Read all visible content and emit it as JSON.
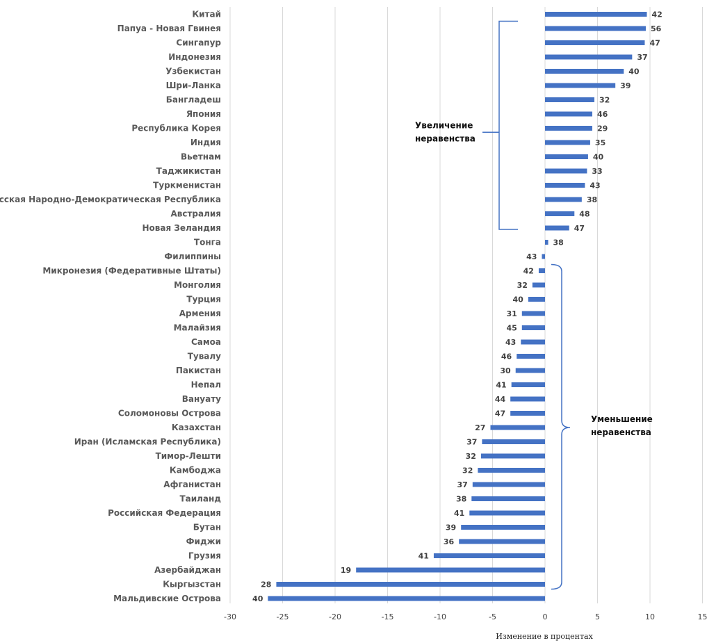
{
  "chart_data": {
    "type": "bar",
    "orientation": "horizontal",
    "categories": [
      "Китай",
      "Папуа - Новая Гвинея",
      "Сингапур",
      "Индонезия",
      "Узбекистан",
      "Шри-Ланка",
      "Бангладеш",
      "Япония",
      "Республика Корея",
      "Индия",
      "Вьетнам",
      "Таджикистан",
      "Туркменистан",
      "Лаосская Народно-Демократическая Республика",
      "Австралия",
      "Новая Зеландия",
      "Тонга",
      "Филиппины",
      "Микронезия (Федеративные Штаты)",
      "Монголия",
      "Турция",
      "Армения",
      "Малайзия",
      "Самоа",
      "Тувалу",
      "Пакистан",
      "Непал",
      "Вануату",
      "Соломоновы Острова",
      "Казахстан",
      "Иран (Исламская Республика)",
      "Тимор-Лешти",
      "Камбоджа",
      "Афганистан",
      "Таиланд",
      "Российская Федерация",
      "Бутан",
      "Фиджи",
      "Грузия",
      "Азербайджан",
      "Кыргызстан",
      "Мальдивские Острова"
    ],
    "values": [
      9.7,
      9.6,
      9.5,
      8.3,
      7.5,
      6.7,
      4.7,
      4.5,
      4.5,
      4.3,
      4.1,
      4.0,
      3.8,
      3.5,
      2.8,
      2.3,
      0.3,
      -0.3,
      -0.6,
      -1.2,
      -1.6,
      -2.2,
      -2.2,
      -2.3,
      -2.7,
      -2.8,
      -3.2,
      -3.3,
      -3.3,
      -5.2,
      -6.0,
      -6.1,
      -6.4,
      -6.9,
      -7.0,
      -7.2,
      -8.0,
      -8.2,
      -10.6,
      -18.0,
      -25.6,
      -26.4
    ],
    "data_labels": [
      "42",
      "56",
      "47",
      "37",
      "40",
      "39",
      "32",
      "46",
      "29",
      "35",
      "40",
      "33",
      "43",
      "38",
      "48",
      "47",
      "38",
      "43",
      "42",
      "32",
      "40",
      "31",
      "45",
      "43",
      "46",
      "30",
      "41",
      "44",
      "47",
      "27",
      "37",
      "32",
      "32",
      "37",
      "38",
      "41",
      "39",
      "36",
      "41",
      "19",
      "28",
      "40"
    ],
    "xlabel": "Изменение в процентах",
    "ylabel": "",
    "xlim": [
      -30,
      15
    ],
    "x_ticks": [
      "-30",
      "-25",
      "-20",
      "-15",
      "-10",
      "-5",
      "0",
      "5",
      "10",
      "15"
    ],
    "grid": "vertical",
    "legend": "none",
    "bar_color": "#4472C4",
    "gridline_color": "#D9D9D9",
    "annotations": [
      {
        "lines": [
          "Увеличение",
          "неравенства"
        ],
        "range": [
          "Китай",
          "Новая Зеландия"
        ]
      },
      {
        "lines": [
          "Уменьшение",
          "неравенства"
        ],
        "range": [
          "Микронезия (Федеративные Штаты)",
          "Кыргызстан"
        ]
      }
    ]
  }
}
